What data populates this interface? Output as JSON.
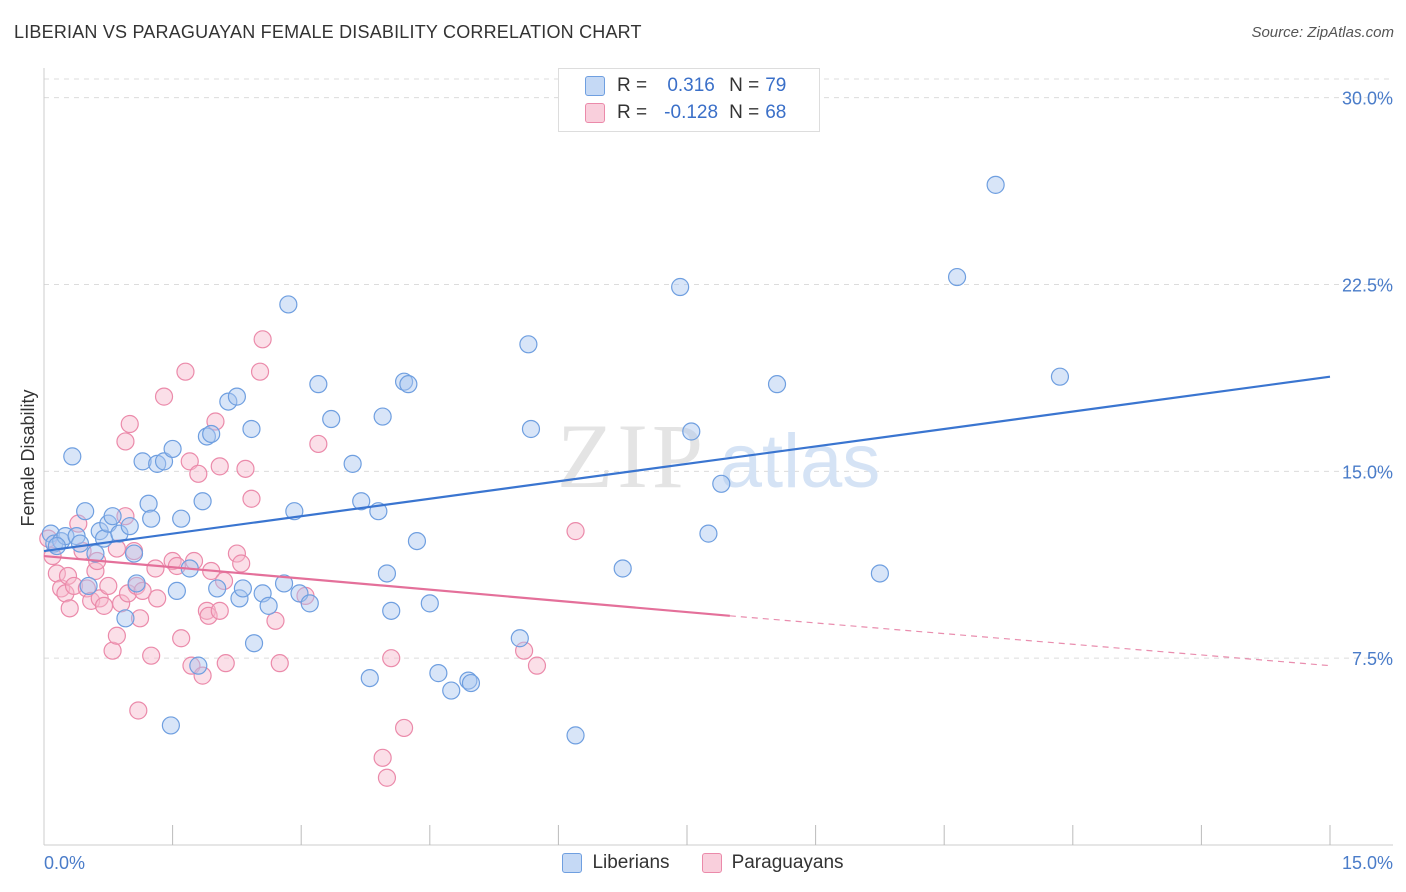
{
  "title": "LIBERIAN VS PARAGUAYAN FEMALE DISABILITY CORRELATION CHART",
  "source": "Source: ZipAtlas.com",
  "watermark": {
    "zip": "ZIP",
    "atlas": "atlas"
  },
  "legend": {
    "r_label": "R =",
    "n_label": "N =",
    "rows": [
      {
        "name": "Liberians",
        "r": "0.316",
        "n": "79"
      },
      {
        "name": "Paraguayans",
        "r": "-0.128",
        "n": "68"
      }
    ]
  },
  "colors": {
    "blue_fill": "#a9c6f0",
    "blue_stroke": "#6f9fe0",
    "blue_line": "#3a75d0",
    "pink_fill": "#f6b8cc",
    "pink_stroke": "#eb8aaa",
    "pink_line": "#e4709a",
    "grid": "#dcdcdc",
    "tick_text": "#4a7cc9"
  },
  "chart_data": {
    "type": "scatter",
    "title": "LIBERIAN VS PARAGUAYAN FEMALE DISABILITY CORRELATION CHART",
    "xlabel": "",
    "ylabel": "Female Disability",
    "xlim": [
      0,
      15
    ],
    "ylim": [
      0,
      30.75
    ],
    "x_tick_labels": [
      "0.0%",
      "15.0%"
    ],
    "y_ticks": [
      7.5,
      15.0,
      22.5,
      30.0
    ],
    "y_tick_labels": [
      "7.5%",
      "15.0%",
      "22.5%",
      "30.0%"
    ],
    "series": [
      {
        "name": "Liberians",
        "r": 0.316,
        "n": 79,
        "trend": {
          "x0": 0.0,
          "y0": 11.8,
          "x1": 15.0,
          "y1": 18.8
        },
        "points": [
          [
            0.08,
            12.5
          ],
          [
            0.12,
            12.1
          ],
          [
            0.2,
            12.2
          ],
          [
            0.25,
            12.4
          ],
          [
            0.33,
            15.6
          ],
          [
            0.38,
            12.4
          ],
          [
            0.42,
            12.1
          ],
          [
            0.48,
            13.4
          ],
          [
            0.52,
            10.4
          ],
          [
            0.6,
            11.7
          ],
          [
            0.65,
            12.6
          ],
          [
            0.7,
            12.3
          ],
          [
            0.75,
            12.9
          ],
          [
            0.8,
            13.2
          ],
          [
            0.88,
            12.5
          ],
          [
            0.95,
            9.1
          ],
          [
            1.0,
            12.8
          ],
          [
            1.05,
            11.7
          ],
          [
            1.08,
            10.5
          ],
          [
            1.15,
            15.4
          ],
          [
            1.22,
            13.7
          ],
          [
            1.25,
            13.1
          ],
          [
            1.32,
            15.3
          ],
          [
            1.4,
            15.4
          ],
          [
            1.48,
            4.8
          ],
          [
            1.5,
            15.9
          ],
          [
            1.55,
            10.2
          ],
          [
            1.6,
            13.1
          ],
          [
            1.7,
            11.1
          ],
          [
            1.8,
            7.2
          ],
          [
            1.85,
            13.8
          ],
          [
            1.9,
            16.4
          ],
          [
            1.95,
            16.5
          ],
          [
            2.02,
            10.3
          ],
          [
            2.15,
            17.8
          ],
          [
            2.25,
            18.0
          ],
          [
            2.28,
            9.9
          ],
          [
            2.32,
            10.3
          ],
          [
            2.42,
            16.7
          ],
          [
            2.45,
            8.1
          ],
          [
            2.55,
            10.1
          ],
          [
            2.62,
            9.6
          ],
          [
            2.8,
            10.5
          ],
          [
            2.85,
            21.7
          ],
          [
            2.92,
            13.4
          ],
          [
            2.98,
            10.1
          ],
          [
            3.1,
            9.7
          ],
          [
            3.2,
            18.5
          ],
          [
            3.35,
            17.1
          ],
          [
            3.6,
            15.3
          ],
          [
            3.7,
            13.8
          ],
          [
            3.8,
            6.7
          ],
          [
            3.9,
            13.4
          ],
          [
            3.95,
            17.2
          ],
          [
            4.0,
            10.9
          ],
          [
            4.05,
            9.4
          ],
          [
            4.2,
            18.6
          ],
          [
            4.25,
            18.5
          ],
          [
            4.35,
            12.2
          ],
          [
            4.5,
            9.7
          ],
          [
            4.6,
            6.9
          ],
          [
            4.75,
            6.2
          ],
          [
            4.95,
            6.6
          ],
          [
            4.98,
            6.5
          ],
          [
            5.55,
            8.3
          ],
          [
            5.65,
            20.1
          ],
          [
            5.68,
            16.7
          ],
          [
            6.2,
            4.4
          ],
          [
            6.75,
            11.1
          ],
          [
            7.42,
            22.4
          ],
          [
            7.55,
            16.6
          ],
          [
            7.75,
            12.5
          ],
          [
            7.9,
            14.5
          ],
          [
            8.55,
            18.5
          ],
          [
            9.75,
            10.9
          ],
          [
            10.65,
            22.8
          ],
          [
            11.1,
            26.5
          ],
          [
            11.85,
            18.8
          ],
          [
            0.15,
            12.0
          ]
        ]
      },
      {
        "name": "Paraguayans",
        "r": -0.128,
        "n": 68,
        "trend": {
          "x0": 0.0,
          "y0": 11.6,
          "x1": 8.0,
          "y1": 9.2,
          "dash_to": {
            "x": 15.0,
            "y": 7.2
          }
        },
        "points": [
          [
            0.05,
            12.3
          ],
          [
            0.1,
            11.6
          ],
          [
            0.15,
            10.9
          ],
          [
            0.2,
            10.3
          ],
          [
            0.25,
            10.1
          ],
          [
            0.28,
            10.8
          ],
          [
            0.3,
            9.5
          ],
          [
            0.35,
            10.4
          ],
          [
            0.4,
            12.9
          ],
          [
            0.45,
            11.8
          ],
          [
            0.5,
            10.3
          ],
          [
            0.55,
            9.8
          ],
          [
            0.6,
            11.0
          ],
          [
            0.62,
            11.4
          ],
          [
            0.65,
            9.9
          ],
          [
            0.7,
            9.6
          ],
          [
            0.75,
            10.4
          ],
          [
            0.8,
            7.8
          ],
          [
            0.85,
            11.9
          ],
          [
            0.85,
            8.4
          ],
          [
            0.9,
            9.7
          ],
          [
            0.95,
            13.2
          ],
          [
            0.95,
            16.2
          ],
          [
            0.98,
            10.1
          ],
          [
            1.0,
            16.9
          ],
          [
            1.05,
            11.8
          ],
          [
            1.08,
            10.4
          ],
          [
            1.12,
            9.1
          ],
          [
            1.15,
            10.2
          ],
          [
            1.1,
            5.4
          ],
          [
            1.25,
            7.6
          ],
          [
            1.3,
            11.1
          ],
          [
            1.32,
            9.9
          ],
          [
            1.4,
            18.0
          ],
          [
            1.5,
            11.4
          ],
          [
            1.55,
            11.2
          ],
          [
            1.6,
            8.3
          ],
          [
            1.65,
            19.0
          ],
          [
            1.7,
            15.4
          ],
          [
            1.72,
            7.2
          ],
          [
            1.75,
            11.4
          ],
          [
            1.8,
            14.9
          ],
          [
            1.85,
            6.8
          ],
          [
            1.9,
            9.4
          ],
          [
            1.92,
            9.2
          ],
          [
            1.95,
            11.0
          ],
          [
            2.0,
            17.0
          ],
          [
            2.05,
            15.2
          ],
          [
            2.05,
            9.4
          ],
          [
            2.1,
            10.6
          ],
          [
            2.12,
            7.3
          ],
          [
            2.25,
            11.7
          ],
          [
            2.3,
            11.3
          ],
          [
            2.35,
            15.1
          ],
          [
            2.42,
            13.9
          ],
          [
            2.52,
            19.0
          ],
          [
            2.55,
            20.3
          ],
          [
            2.7,
            9.0
          ],
          [
            2.75,
            7.3
          ],
          [
            3.05,
            10.0
          ],
          [
            3.2,
            16.1
          ],
          [
            3.95,
            3.5
          ],
          [
            4.05,
            7.5
          ],
          [
            4.0,
            2.7
          ],
          [
            4.2,
            4.7
          ],
          [
            5.6,
            7.8
          ],
          [
            5.75,
            7.2
          ],
          [
            6.2,
            12.6
          ]
        ]
      }
    ]
  }
}
